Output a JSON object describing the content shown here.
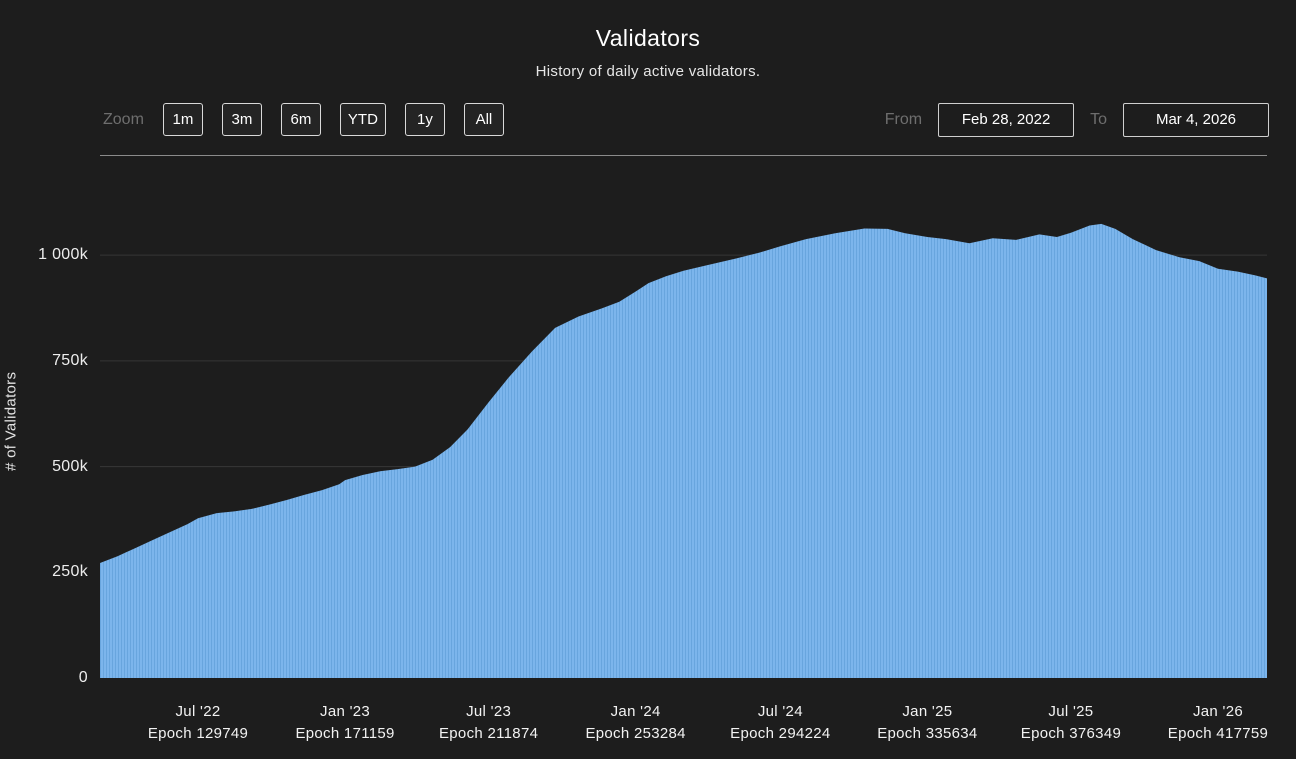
{
  "header": {
    "title": "Validators",
    "subtitle": "History of daily active validators."
  },
  "controls": {
    "zoom_label": "Zoom",
    "zoom_buttons": [
      "1m",
      "3m",
      "6m",
      "YTD",
      "1y",
      "All"
    ],
    "from_label": "From",
    "from_value": "Feb 28, 2022",
    "to_label": "To",
    "to_value": "Mar 4, 2026"
  },
  "chart_data": {
    "type": "area",
    "title": "Validators",
    "subtitle": "History of daily active validators.",
    "ylabel": "# of Validators",
    "values_unit": "thousands of validators",
    "x_range": {
      "from": "Feb 28, 2022",
      "to": "Mar 4, 2026"
    },
    "ylim": [
      0,
      1225
    ],
    "grid": true,
    "legend": "none",
    "colors": {
      "area": "#7cb5ec",
      "stripe": "#68a5de",
      "grid": "#373737",
      "background": "#1d1d1d"
    },
    "yticks": [
      {
        "value": 0,
        "label": "0"
      },
      {
        "value": 250,
        "label": "250k"
      },
      {
        "value": 500,
        "label": "500k"
      },
      {
        "value": 750,
        "label": "750k"
      },
      {
        "value": 1000,
        "label": "1 000k"
      }
    ],
    "xticks": [
      {
        "pos": 0.084,
        "label": "Jul '22",
        "sublabel": "Epoch 129749"
      },
      {
        "pos": 0.21,
        "label": "Jan '23",
        "sublabel": "Epoch 171159"
      },
      {
        "pos": 0.333,
        "label": "Jul '23",
        "sublabel": "Epoch 211874"
      },
      {
        "pos": 0.459,
        "label": "Jan '24",
        "sublabel": "Epoch 253284"
      },
      {
        "pos": 0.583,
        "label": "Jul '24",
        "sublabel": "Epoch 294224"
      },
      {
        "pos": 0.709,
        "label": "Jan '25",
        "sublabel": "Epoch 335634"
      },
      {
        "pos": 0.832,
        "label": "Jul '25",
        "sublabel": "Epoch 376349"
      },
      {
        "pos": 0.958,
        "label": "Jan '26",
        "sublabel": "Epoch 417759"
      }
    ],
    "series": [
      {
        "name": "# of Validators",
        "points": [
          [
            0.0,
            272
          ],
          [
            0.015,
            288
          ],
          [
            0.03,
            307
          ],
          [
            0.045,
            326
          ],
          [
            0.06,
            345
          ],
          [
            0.075,
            364
          ],
          [
            0.084,
            378
          ],
          [
            0.1,
            390
          ],
          [
            0.115,
            394
          ],
          [
            0.13,
            400
          ],
          [
            0.145,
            410
          ],
          [
            0.16,
            421
          ],
          [
            0.175,
            433
          ],
          [
            0.19,
            444
          ],
          [
            0.205,
            458
          ],
          [
            0.21,
            468
          ],
          [
            0.225,
            480
          ],
          [
            0.24,
            489
          ],
          [
            0.255,
            494
          ],
          [
            0.27,
            500
          ],
          [
            0.285,
            516
          ],
          [
            0.3,
            546
          ],
          [
            0.315,
            588
          ],
          [
            0.333,
            652
          ],
          [
            0.35,
            710
          ],
          [
            0.37,
            772
          ],
          [
            0.39,
            828
          ],
          [
            0.41,
            855
          ],
          [
            0.43,
            874
          ],
          [
            0.445,
            890
          ],
          [
            0.459,
            914
          ],
          [
            0.47,
            934
          ],
          [
            0.485,
            950
          ],
          [
            0.5,
            963
          ],
          [
            0.52,
            976
          ],
          [
            0.545,
            992
          ],
          [
            0.565,
            1006
          ],
          [
            0.583,
            1021
          ],
          [
            0.605,
            1038
          ],
          [
            0.63,
            1052
          ],
          [
            0.655,
            1063
          ],
          [
            0.675,
            1062
          ],
          [
            0.69,
            1052
          ],
          [
            0.709,
            1043
          ],
          [
            0.725,
            1038
          ],
          [
            0.745,
            1028
          ],
          [
            0.765,
            1040
          ],
          [
            0.785,
            1036
          ],
          [
            0.805,
            1049
          ],
          [
            0.82,
            1043
          ],
          [
            0.832,
            1053
          ],
          [
            0.848,
            1070
          ],
          [
            0.858,
            1074
          ],
          [
            0.87,
            1062
          ],
          [
            0.885,
            1038
          ],
          [
            0.905,
            1012
          ],
          [
            0.925,
            995
          ],
          [
            0.942,
            986
          ],
          [
            0.958,
            968
          ],
          [
            0.975,
            961
          ],
          [
            0.99,
            952
          ],
          [
            1.0,
            945
          ]
        ]
      }
    ]
  }
}
